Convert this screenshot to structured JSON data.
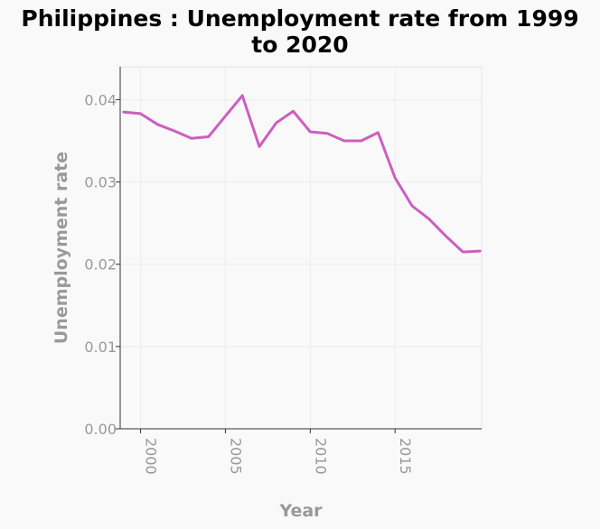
{
  "chart_data": {
    "type": "line",
    "title_line1": "Philippines : Unemployment rate from 1999",
    "title_line2": "to 2020",
    "xlabel": "Year",
    "ylabel": "Unemployment rate",
    "xlim": [
      1998.8,
      2020.1
    ],
    "ylim": [
      0.0,
      0.044
    ],
    "xticks": [
      2000,
      2005,
      2010,
      2015
    ],
    "xtick_labels": [
      "2000",
      "2005",
      "2010",
      "2015"
    ],
    "yticks": [
      0.0,
      0.01,
      0.02,
      0.03,
      0.04
    ],
    "ytick_labels": [
      "0.00",
      "0.01",
      "0.02",
      "0.03",
      "0.04"
    ],
    "grid": true,
    "line_color": "#cc5fbf",
    "series": [
      {
        "x": [
          1999,
          2000,
          2001,
          2002,
          2003,
          2004,
          2005,
          2006,
          2007,
          2008,
          2009,
          2010,
          2011,
          2012,
          2013,
          2014,
          2015,
          2016,
          2017,
          2018,
          2019,
          2020
        ],
        "values": [
          0.0385,
          0.0383,
          0.037,
          0.0362,
          0.0353,
          0.0355,
          0.038,
          0.0405,
          0.0343,
          0.0372,
          0.0386,
          0.0361,
          0.0359,
          0.035,
          0.035,
          0.036,
          0.0305,
          0.0271,
          0.0255,
          0.0234,
          0.0215,
          0.0216
        ]
      }
    ]
  }
}
